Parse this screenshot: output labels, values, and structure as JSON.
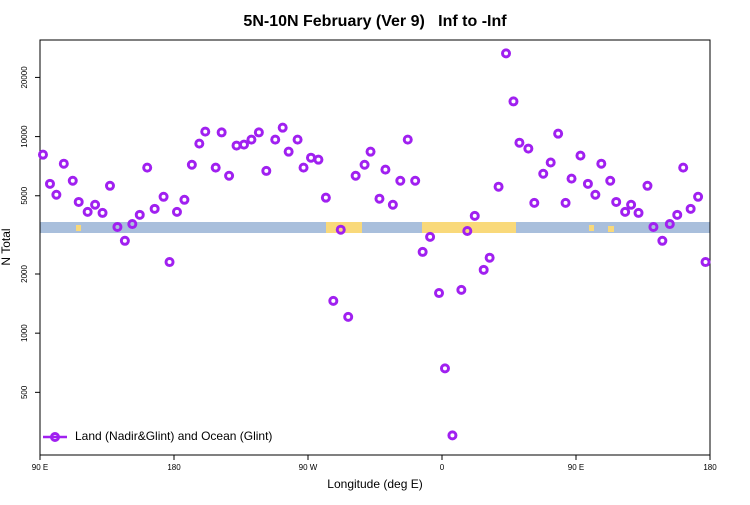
{
  "chart_data": {
    "type": "scatter",
    "title": "5N-10N February (Ver 9)   Inf to -Inf",
    "x_label": "Longitude (deg E)",
    "y_label": "N Total",
    "xlim": [
      90,
      540
    ],
    "xticks": [
      {
        "value": 90,
        "label": "90 E"
      },
      {
        "value": 180,
        "label": "180"
      },
      {
        "value": 270,
        "label": "90 W"
      },
      {
        "value": 360,
        "label": "0"
      },
      {
        "value": 450,
        "label": "90 E"
      },
      {
        "value": 540,
        "label": "180"
      }
    ],
    "ylim": [
      240,
      31000
    ],
    "y_scale": "log",
    "yticks": [
      500,
      1000,
      2000,
      5000,
      10000,
      20000
    ],
    "legend": "bottom-left",
    "series": [
      {
        "name": "Land (Nadir&Glint) and Ocean (Glint)",
        "color": "#a020f0",
        "x": [
          92,
          96.7,
          101,
          106,
          112,
          116,
          122,
          127,
          132,
          137,
          142,
          147,
          152,
          157,
          162,
          167,
          173,
          177,
          182,
          187,
          192,
          197,
          201,
          208,
          212,
          217,
          222,
          227,
          232,
          237,
          242,
          248,
          253,
          257,
          263,
          267,
          272,
          277,
          282,
          287,
          292,
          297,
          302,
          308,
          312,
          318,
          322,
          327,
          332,
          337,
          342,
          347,
          352,
          358,
          362,
          367,
          373,
          377,
          382,
          388,
          392,
          398,
          403,
          408,
          412,
          418,
          422,
          428,
          433,
          438,
          443,
          447,
          453,
          458,
          463,
          467,
          473,
          477,
          483,
          487,
          492,
          498,
          502,
          508,
          513,
          518,
          522,
          527,
          532,
          537
        ],
        "values": [
          8090,
          5750,
          5060,
          7280,
          5960,
          4650,
          4140,
          4500,
          4090,
          5620,
          3470,
          2950,
          3590,
          4000,
          6950,
          4290,
          4940,
          2300,
          4140,
          4770,
          7190,
          9210,
          10600,
          6950,
          10500,
          6320,
          9000,
          9100,
          9650,
          10500,
          6690,
          9650,
          11100,
          8380,
          9650,
          6950,
          7810,
          7630,
          4890,
          1460,
          3360,
          1210,
          6320,
          7190,
          8380,
          4830,
          6790,
          4500,
          5960,
          9650,
          5960,
          2590,
          3090,
          1600,
          662,
          302,
          1660,
          3310,
          3950,
          2100,
          2420,
          5560,
          26500,
          15100,
          9310,
          8690,
          4600,
          6470,
          7380,
          10350,
          4600,
          6110,
          8000,
          5750,
          5060,
          7280,
          5960,
          4650,
          4140,
          4500,
          4090,
          5620,
          3470,
          2950,
          3590,
          4000,
          6950,
          4290,
          4940,
          2300
        ]
      }
    ]
  }
}
